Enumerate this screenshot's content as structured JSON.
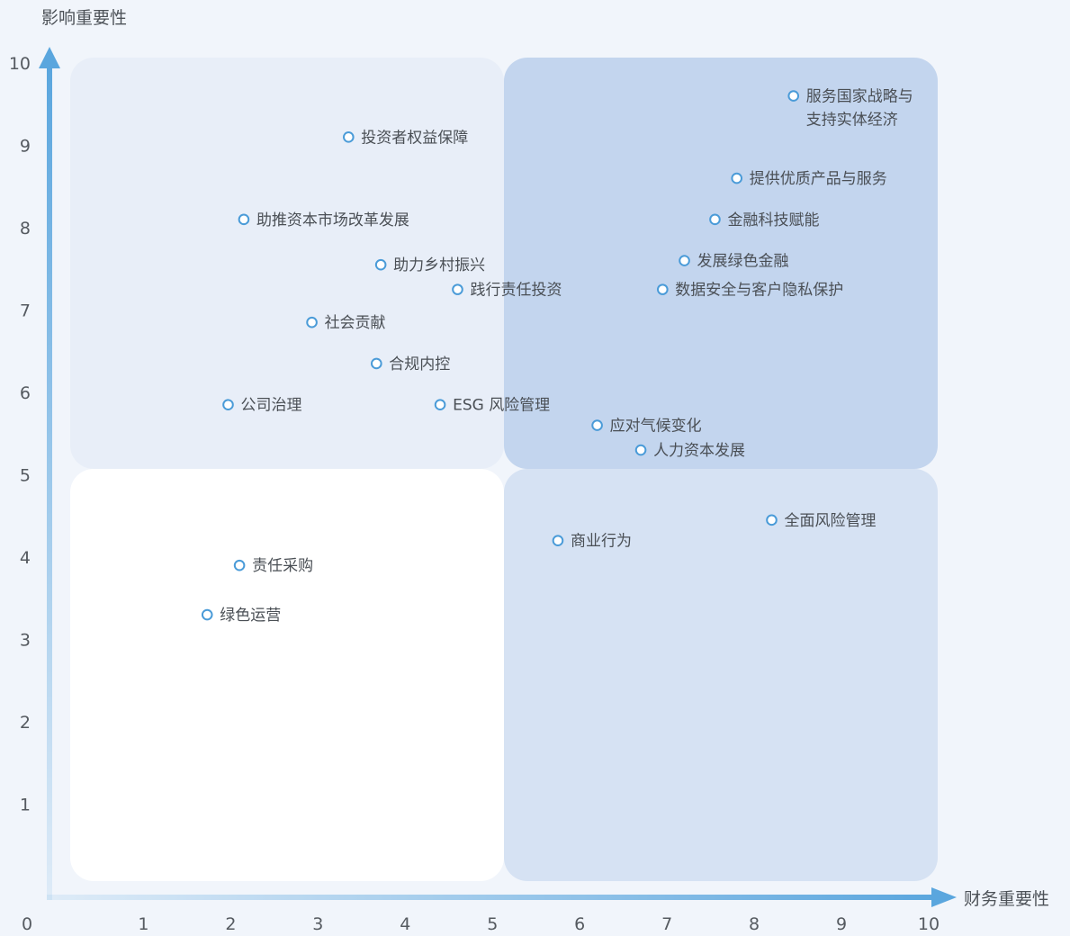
{
  "chart_data": {
    "type": "scatter",
    "title": "",
    "xlabel": "财务重要性",
    "ylabel": "影响重要性",
    "xlim": [
      0,
      10
    ],
    "ylim": [
      0,
      10
    ],
    "x_ticks": [
      "0",
      "1",
      "2",
      "3",
      "4",
      "5",
      "6",
      "7",
      "8",
      "9",
      "10"
    ],
    "y_ticks": [
      "1",
      "2",
      "3",
      "4",
      "5",
      "6",
      "7",
      "8",
      "9",
      "10"
    ],
    "grid": false,
    "quadrant_split": {
      "x": 5,
      "y": 5
    },
    "colors": {
      "quadrant_top_left": "#e8eef8",
      "quadrant_top_right": "#c3d5ee",
      "quadrant_bottom_left": "#ffffff",
      "quadrant_bottom_right": "#d6e2f3",
      "axis": "#5aa6de",
      "marker": "#4a9bd8"
    },
    "points": [
      {
        "label": [
          "服务国家战略与",
          "支持实体经济"
        ],
        "x": 8.45,
        "y": 9.6
      },
      {
        "label": [
          "投资者权益保障"
        ],
        "x": 3.35,
        "y": 9.1
      },
      {
        "label": [
          "提供优质产品与服务"
        ],
        "x": 7.8,
        "y": 8.6
      },
      {
        "label": [
          "助推资本市场改革发展"
        ],
        "x": 2.15,
        "y": 8.1
      },
      {
        "label": [
          "金融科技赋能"
        ],
        "x": 7.55,
        "y": 8.1
      },
      {
        "label": [
          "发展绿色金融"
        ],
        "x": 7.2,
        "y": 7.6
      },
      {
        "label": [
          "助力乡村振兴"
        ],
        "x": 3.72,
        "y": 7.55
      },
      {
        "label": [
          "践行责任投资"
        ],
        "x": 4.6,
        "y": 7.25
      },
      {
        "label": [
          "数据安全与客户隐私保护"
        ],
        "x": 6.95,
        "y": 7.25
      },
      {
        "label": [
          "社会贡献"
        ],
        "x": 2.93,
        "y": 6.85
      },
      {
        "label": [
          "合规内控"
        ],
        "x": 3.67,
        "y": 6.35
      },
      {
        "label": [
          "公司治理"
        ],
        "x": 1.97,
        "y": 5.85
      },
      {
        "label": [
          "ESG 风险管理"
        ],
        "x": 4.4,
        "y": 5.85
      },
      {
        "label": [
          "应对气候变化"
        ],
        "x": 6.2,
        "y": 5.6
      },
      {
        "label": [
          "人力资本发展"
        ],
        "x": 6.7,
        "y": 5.3
      },
      {
        "label": [
          "全面风险管理"
        ],
        "x": 8.2,
        "y": 4.45
      },
      {
        "label": [
          "商业行为"
        ],
        "x": 5.75,
        "y": 4.2
      },
      {
        "label": [
          "责任采购"
        ],
        "x": 2.1,
        "y": 3.9
      },
      {
        "label": [
          "绿色运营"
        ],
        "x": 1.73,
        "y": 3.3
      }
    ]
  }
}
